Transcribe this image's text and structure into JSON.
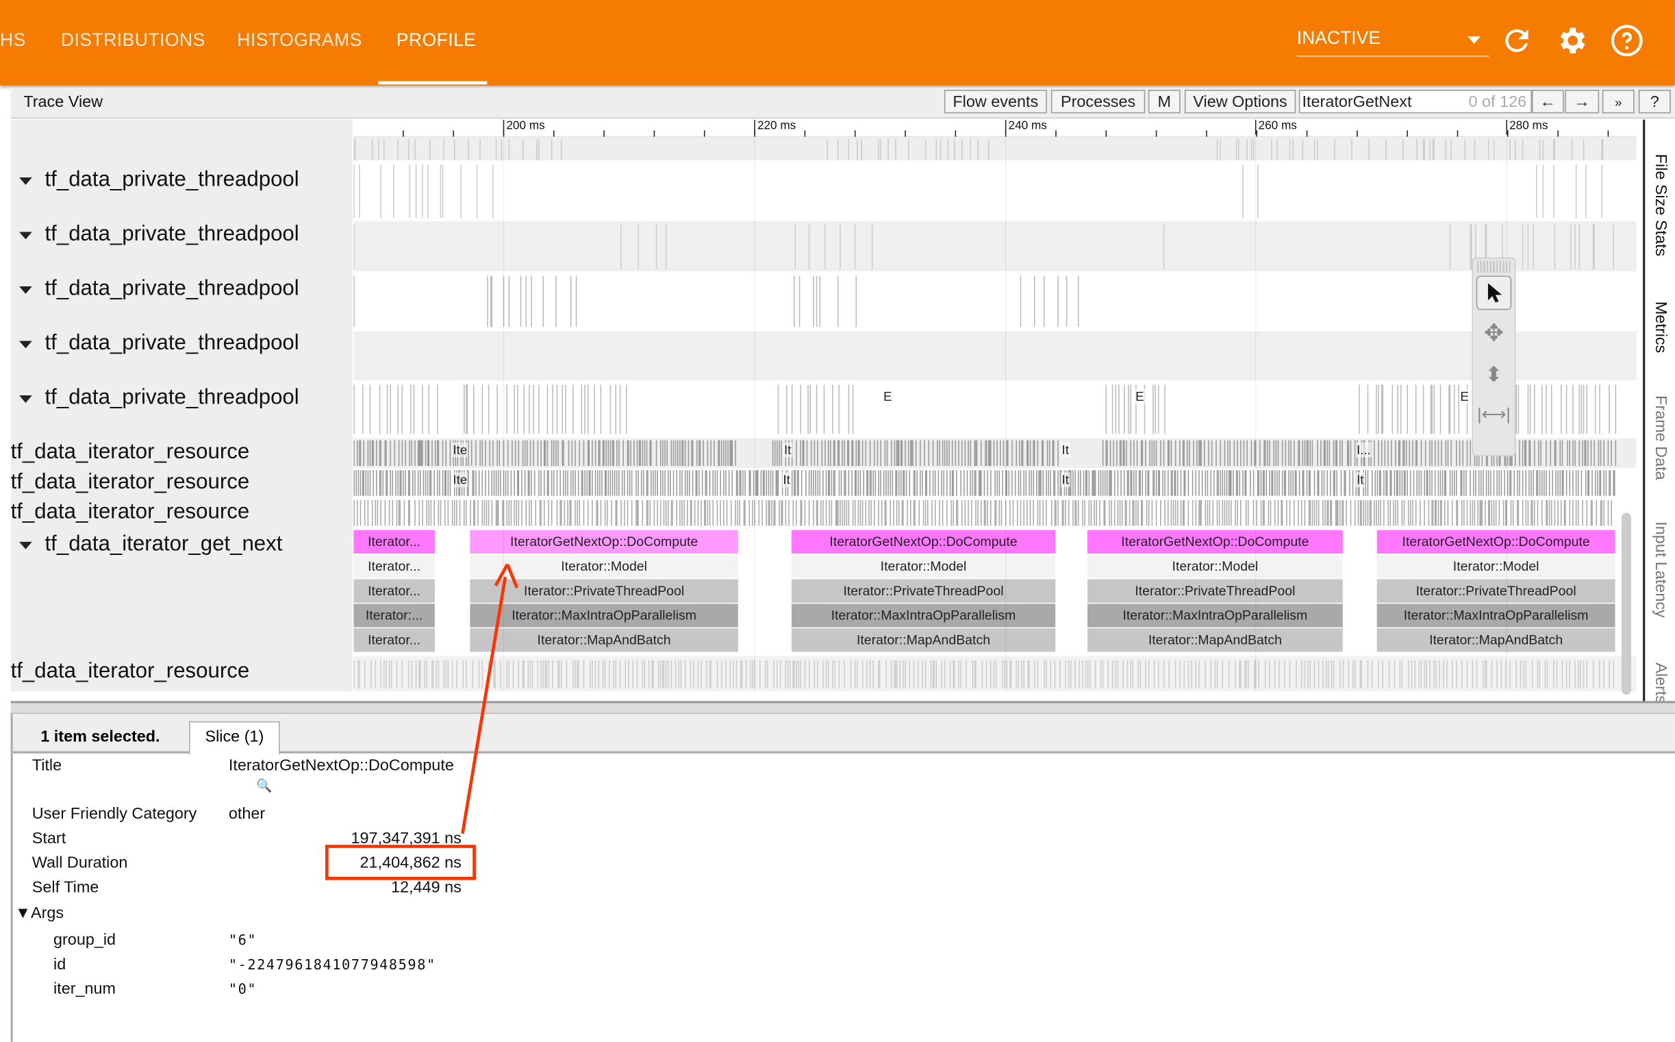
{
  "header": {
    "tabs": [
      {
        "label": "HS",
        "active": false
      },
      {
        "label": "DISTRIBUTIONS",
        "active": false
      },
      {
        "label": "HISTOGRAMS",
        "active": false
      },
      {
        "label": "PROFILE",
        "active": true
      }
    ],
    "run_select": "INACTIVE",
    "icons": [
      "refresh-icon",
      "gear-icon",
      "help-icon"
    ],
    "accent_color": "#f57c00"
  },
  "trace_view": {
    "title": "Trace View",
    "buttons": {
      "flow_events": "Flow events",
      "processes": "Processes",
      "m": "M",
      "view_options": "View Options",
      "prev": "←",
      "next": "→",
      "more": "»",
      "help": "?"
    },
    "search": {
      "value": "IteratorGetNext",
      "count": "0 of 126"
    },
    "ruler": [
      "200 ms",
      "220 ms",
      "240 ms",
      "260 ms",
      "280 ms"
    ],
    "tracks": [
      "tf_data_private_threadpool",
      "tf_data_private_threadpool",
      "tf_data_private_threadpool",
      "tf_data_private_threadpool",
      "tf_data_private_threadpool",
      "tf_data_iterator_resource",
      "tf_data_iterator_resource",
      "tf_data_iterator_resource",
      "tf_data_iterator_get_next",
      "tf_data_iterator_resource"
    ],
    "markers": {
      "e": "E",
      "ite": "Ite",
      "it": "It",
      "i": "I..."
    },
    "slices": {
      "truncated": "Iterator...",
      "truncated2": "Iterator:...",
      "top": "IteratorGetNextOp::DoCompute",
      "model": "Iterator::Model",
      "pool": "Iterator::PrivateThreadPool",
      "maxintra": "Iterator::MaxIntraOpParallelism",
      "mapbatch": "Iterator::MapAndBatch"
    },
    "side_tabs": [
      "File Size Stats",
      "Metrics",
      "Frame Data",
      "Input Latency",
      "Alerts"
    ],
    "colors": {
      "slice_top": "#ff77ff",
      "slice_selected": "#ff99ff",
      "annotation": "#ff3300"
    }
  },
  "details": {
    "summary": "1 item selected.",
    "tab": "Slice (1)",
    "rows": [
      {
        "key": "Title",
        "value": "IteratorGetNextOp::DoCompute"
      },
      {
        "key": "User Friendly Category",
        "value": "other"
      },
      {
        "key": "Start",
        "value": "197,347,391 ns"
      },
      {
        "key": "Wall Duration",
        "value": "21,404,862 ns"
      },
      {
        "key": "Self Time",
        "value": "12,449 ns"
      }
    ],
    "args_label": "▼Args",
    "args": [
      {
        "key": "group_id",
        "value": "\"6\""
      },
      {
        "key": "id",
        "value": "\"-2247961841077948598\""
      },
      {
        "key": "iter_num",
        "value": "\"0\""
      }
    ]
  }
}
